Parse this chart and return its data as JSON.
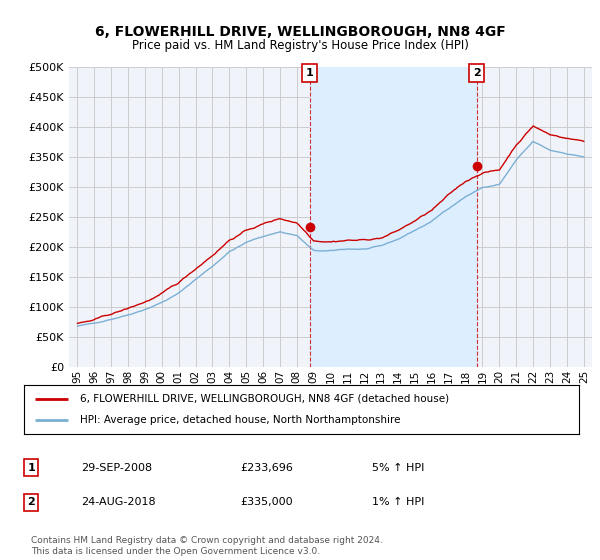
{
  "title": "6, FLOWERHILL DRIVE, WELLINGBOROUGH, NN8 4GF",
  "subtitle": "Price paid vs. HM Land Registry's House Price Index (HPI)",
  "ylabel_ticks": [
    "£0",
    "£50K",
    "£100K",
    "£150K",
    "£200K",
    "£250K",
    "£300K",
    "£350K",
    "£400K",
    "£450K",
    "£500K"
  ],
  "ytick_values": [
    0,
    50000,
    100000,
    150000,
    200000,
    250000,
    300000,
    350000,
    400000,
    450000,
    500000
  ],
  "ylim": [
    0,
    500000
  ],
  "xlim_start": 1994.5,
  "xlim_end": 2025.5,
  "hpi_color": "#7bafd4",
  "price_color": "#cc0000",
  "shade_color": "#ddeeff",
  "marker1_date": 2008.75,
  "marker1_price": 233696,
  "marker1_label": "1",
  "marker2_date": 2018.65,
  "marker2_price": 335000,
  "marker2_label": "2",
  "annotation_box_color": "#cc0000",
  "grid_color": "#cccccc",
  "background_color": "#f0f4fa",
  "legend_line1": "6, FLOWERHILL DRIVE, WELLINGBOROUGH, NN8 4GF (detached house)",
  "legend_line2": "HPI: Average price, detached house, North Northamptonshire",
  "table_row1": [
    "1",
    "29-SEP-2008",
    "£233,696",
    "5% ↑ HPI"
  ],
  "table_row2": [
    "2",
    "24-AUG-2018",
    "£335,000",
    "1% ↑ HPI"
  ],
  "footer": "Contains HM Land Registry data © Crown copyright and database right 2024.\nThis data is licensed under the Open Government Licence v3.0."
}
